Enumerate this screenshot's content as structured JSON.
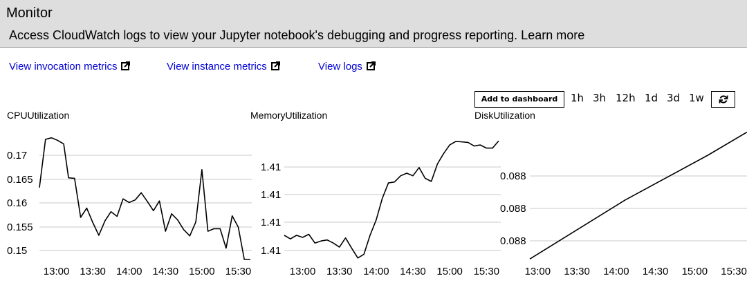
{
  "header": {
    "title": "Monitor",
    "description": "Access CloudWatch logs to view your Jupyter notebook's debugging and progress reporting. Learn more"
  },
  "links": [
    {
      "label": "View invocation metrics",
      "icon": "external-link-icon"
    },
    {
      "label": "View instance metrics",
      "icon": "external-link-icon"
    },
    {
      "label": "View logs",
      "icon": "external-link-icon"
    }
  ],
  "toolbar": {
    "add_to_dashboard_label": "Add to dashboard",
    "time_ranges": [
      "1h",
      "3h",
      "12h",
      "1d",
      "3d",
      "1w"
    ],
    "refresh_icon": "refresh-icon"
  },
  "chart_data": [
    {
      "type": "line",
      "title": "CPUUtilization",
      "x_ticks": [
        "13:00",
        "13:30",
        "14:00",
        "14:30",
        "15:00",
        "15:30"
      ],
      "y_ticks": [
        "0.17",
        "0.165",
        "0.16",
        "0.155",
        "0.15"
      ],
      "ylim": [
        0.148,
        0.173
      ],
      "grid": true,
      "x": [
        "12:46",
        "12:51",
        "12:56",
        "13:01",
        "13:06",
        "13:10",
        "13:15",
        "13:20",
        "13:25",
        "13:30",
        "13:35",
        "13:40",
        "13:45",
        "13:50",
        "13:55",
        "14:00",
        "14:05",
        "14:10",
        "14:15",
        "14:20",
        "14:25",
        "14:30",
        "14:35",
        "14:40",
        "14:45",
        "14:50",
        "14:55",
        "15:00",
        "15:05",
        "15:10",
        "15:15",
        "15:20",
        "15:25",
        "15:30",
        "15:35",
        "15:40"
      ],
      "values": [
        0.162,
        0.1714,
        0.1717,
        0.1712,
        0.1705,
        0.1639,
        0.1638,
        0.1562,
        0.158,
        0.1552,
        0.1527,
        0.1555,
        0.1573,
        0.1564,
        0.1598,
        0.1591,
        0.1596,
        0.161,
        0.1593,
        0.1575,
        0.1594,
        0.1535,
        0.1569,
        0.1557,
        0.1538,
        0.1526,
        0.1553,
        0.1655,
        0.1535,
        0.154,
        0.154,
        0.1502,
        0.1565,
        0.1543,
        0.148,
        0.148
      ]
    },
    {
      "type": "line",
      "title": "MemoryUtilization",
      "x_ticks": [
        "13:00",
        "13:30",
        "14:00",
        "14:30",
        "15:00",
        "15:30"
      ],
      "y_ticks": [
        "1.41",
        "1.41",
        "1.41",
        "1.41"
      ],
      "ylim": [
        0,
        100
      ],
      "grid": true,
      "x": [
        "12:45",
        "12:50",
        "12:55",
        "13:00",
        "13:05",
        "13:10",
        "13:15",
        "13:20",
        "13:25",
        "13:30",
        "13:35",
        "13:40",
        "13:45",
        "13:50",
        "13:55",
        "14:00",
        "14:05",
        "14:10",
        "14:15",
        "14:20",
        "14:25",
        "14:30",
        "14:35",
        "14:40",
        "14:45",
        "14:50",
        "14:55",
        "15:00",
        "15:05",
        "15:10",
        "15:15",
        "15:20",
        "15:25",
        "15:30",
        "15:35",
        "15:40"
      ],
      "values": [
        18.8,
        16.0,
        18.8,
        17.2,
        19.6,
        12.8,
        14.4,
        15.2,
        12.8,
        9.6,
        16.8,
        8.8,
        1.2,
        4.0,
        18.8,
        30.8,
        47.6,
        59.6,
        60.4,
        65.2,
        67.2,
        65.2,
        71.6,
        63.2,
        60.8,
        74.4,
        82.4,
        89.2,
        92.0,
        91.6,
        91.2,
        88.4,
        89.2,
        86.8,
        86.8,
        92.4
      ]
    },
    {
      "type": "line",
      "title": "DiskUtilization",
      "x_ticks": [
        "13:00",
        "13:30",
        "14:00",
        "14:30",
        "15:00",
        "15:30"
      ],
      "y_ticks": [
        "0.088",
        "0.088",
        "0.088"
      ],
      "ylim": [
        0,
        100
      ],
      "grid": true,
      "x": [
        "12:54",
        "14:07",
        "15:10",
        "15:40"
      ],
      "values": [
        0.4,
        46.4,
        81.2,
        99.2
      ]
    }
  ]
}
